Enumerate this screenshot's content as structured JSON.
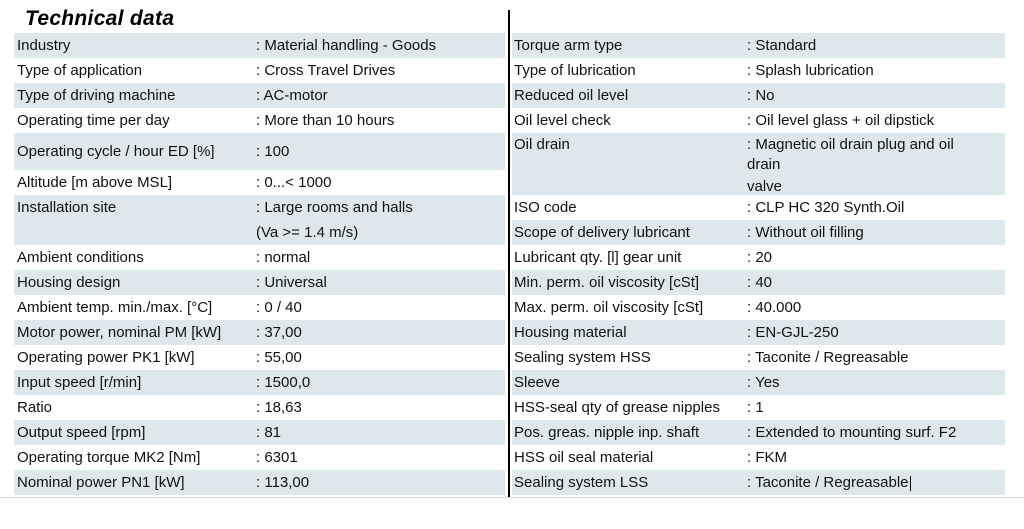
{
  "title": "Technical data",
  "colors": {
    "row_shade": "#dde8ed",
    "divider": "#000000",
    "text": "#111111"
  },
  "left_table": {
    "rows": [
      {
        "label": "Industry",
        "lines": [
          ": Material handling - Goods"
        ]
      },
      {
        "label": "Type of application",
        "lines": [
          ": Cross Travel Drives"
        ]
      },
      {
        "label": "Type of driving machine",
        "lines": [
          ": AC-motor"
        ]
      },
      {
        "label": "Operating time per day",
        "lines": [
          ": More than 10 hours"
        ]
      },
      {
        "label": "Operating cycle / hour ED [%]",
        "lines": [
          ": 100"
        ],
        "tall": true
      },
      {
        "label": "Altitude [m above MSL]",
        "lines": [
          ": 0...< 1000"
        ]
      },
      {
        "label": "Installation site",
        "lines": [
          ": Large rooms and halls",
          "(Va >= 1.4 m/s)"
        ]
      },
      {
        "label": "Ambient conditions",
        "lines": [
          ": normal"
        ]
      },
      {
        "label": "Housing design",
        "lines": [
          ": Universal"
        ]
      },
      {
        "label": "Ambient temp. min./max. [°C]",
        "lines": [
          ": 0 / 40"
        ]
      },
      {
        "label": "Motor power, nominal PM [kW]",
        "lines": [
          ": 37,00"
        ]
      },
      {
        "label": "Operating power PK1 [kW]",
        "lines": [
          ": 55,00"
        ]
      },
      {
        "label": "Input speed [r/min]",
        "lines": [
          ": 1500,0"
        ]
      },
      {
        "label": "Ratio",
        "lines": [
          ": 18,63"
        ]
      },
      {
        "label": "Output speed [rpm]",
        "lines": [
          ": 81"
        ]
      },
      {
        "label": "Operating torque MK2 [Nm]",
        "lines": [
          ": 6301"
        ]
      },
      {
        "label": "Nominal power PN1 [kW]",
        "lines": [
          ": 113,00"
        ]
      }
    ]
  },
  "right_table": {
    "rows": [
      {
        "label": "Torque arm type",
        "lines": [
          ": Standard"
        ]
      },
      {
        "label": "Type of lubrication",
        "lines": [
          ": Splash lubrication"
        ]
      },
      {
        "label": "Reduced oil level",
        "lines": [
          ": No"
        ]
      },
      {
        "label": "Oil level check",
        "lines": [
          ": Oil level glass + oil dipstick"
        ]
      },
      {
        "label": "Oil drain",
        "lines": [
          ": Magnetic oil drain plug and oil",
          "drain",
          "valve"
        ]
      },
      {
        "label": "ISO code",
        "lines": [
          ": CLP HC 320 Synth.Oil"
        ]
      },
      {
        "label": "Scope of delivery lubricant",
        "lines": [
          ": Without oil filling"
        ]
      },
      {
        "label": "Lubricant qty. [l] gear unit",
        "lines": [
          ": 20"
        ]
      },
      {
        "label": "Min. perm. oil viscosity [cSt]",
        "lines": [
          ": 40"
        ]
      },
      {
        "label": "Max. perm. oil viscosity [cSt]",
        "lines": [
          ": 40.000"
        ]
      },
      {
        "label": "Housing material",
        "lines": [
          ": EN-GJL-250"
        ]
      },
      {
        "label": "Sealing system HSS",
        "lines": [
          ": Taconite / Regreasable"
        ]
      },
      {
        "label": "Sleeve",
        "lines": [
          ": Yes"
        ]
      },
      {
        "label": "HSS-seal qty of grease nipples",
        "lines": [
          ": 1"
        ]
      },
      {
        "label": "Pos. greas. nipple inp. shaft",
        "lines": [
          ": Extended to mounting surf. F2"
        ]
      },
      {
        "label": "HSS oil seal material",
        "lines": [
          ": FKM"
        ]
      },
      {
        "label": "Sealing system LSS",
        "lines": [
          ": Taconite / Regreasable"
        ],
        "cursor": true
      }
    ]
  }
}
